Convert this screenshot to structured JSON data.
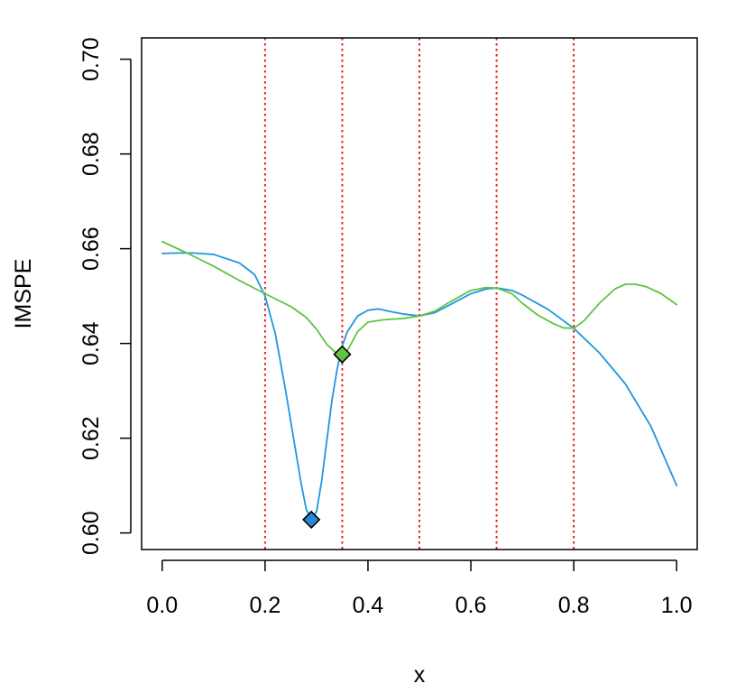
{
  "chart_data": {
    "type": "line",
    "xlabel": "x",
    "ylabel": "IMSPE",
    "xlim": [
      -0.04,
      1.04
    ],
    "ylim": [
      0.5965,
      0.7045
    ],
    "x_ticks": [
      0.0,
      0.2,
      0.4,
      0.6,
      0.8,
      1.0
    ],
    "x_tick_labels": [
      "0.0",
      "0.2",
      "0.4",
      "0.6",
      "0.8",
      "1.0"
    ],
    "y_ticks": [
      0.6,
      0.62,
      0.64,
      0.66,
      0.68,
      0.7
    ],
    "y_tick_labels": [
      "0.60",
      "0.62",
      "0.64",
      "0.66",
      "0.68",
      "0.70"
    ],
    "grid": false,
    "vlines": {
      "x": [
        0.2,
        0.35,
        0.5,
        0.65,
        0.8
      ],
      "color": "#e8211b",
      "style": "dotted"
    },
    "series": [
      {
        "color": "#2196e0",
        "x": [
          0.0,
          0.03,
          0.06,
          0.1,
          0.15,
          0.18,
          0.2,
          0.22,
          0.24,
          0.26,
          0.27,
          0.28,
          0.29,
          0.3,
          0.31,
          0.32,
          0.33,
          0.34,
          0.35,
          0.36,
          0.38,
          0.4,
          0.42,
          0.44,
          0.47,
          0.5,
          0.53,
          0.56,
          0.6,
          0.63,
          0.65,
          0.68,
          0.7,
          0.75,
          0.8,
          0.85,
          0.9,
          0.95,
          1.0
        ],
        "y": [
          0.659,
          0.6591,
          0.6591,
          0.6588,
          0.657,
          0.6545,
          0.65,
          0.642,
          0.63,
          0.617,
          0.6105,
          0.605,
          0.6028,
          0.6045,
          0.611,
          0.6195,
          0.628,
          0.6345,
          0.6395,
          0.6425,
          0.6458,
          0.647,
          0.6473,
          0.6468,
          0.6462,
          0.6458,
          0.6465,
          0.6482,
          0.6505,
          0.6515,
          0.6517,
          0.6512,
          0.6502,
          0.6472,
          0.6432,
          0.638,
          0.6315,
          0.6225,
          0.61
        ]
      },
      {
        "color": "#5ec444",
        "x": [
          0.0,
          0.05,
          0.1,
          0.15,
          0.2,
          0.25,
          0.28,
          0.3,
          0.32,
          0.34,
          0.35,
          0.36,
          0.38,
          0.4,
          0.43,
          0.47,
          0.5,
          0.53,
          0.56,
          0.6,
          0.63,
          0.65,
          0.68,
          0.7,
          0.73,
          0.76,
          0.78,
          0.8,
          0.82,
          0.85,
          0.88,
          0.9,
          0.92,
          0.94,
          0.97,
          1.0
        ],
        "y": [
          0.6615,
          0.659,
          0.6563,
          0.6533,
          0.6505,
          0.6478,
          0.6455,
          0.643,
          0.6398,
          0.6378,
          0.6377,
          0.6385,
          0.6425,
          0.6445,
          0.645,
          0.6453,
          0.6458,
          0.6468,
          0.6488,
          0.6512,
          0.6518,
          0.6517,
          0.6505,
          0.6485,
          0.646,
          0.6442,
          0.6433,
          0.6432,
          0.6448,
          0.6485,
          0.6515,
          0.6525,
          0.6525,
          0.652,
          0.6505,
          0.6482
        ]
      }
    ],
    "markers": [
      {
        "x": 0.29,
        "y": 0.6028,
        "shape": "diamond",
        "fill": "#2a86d6",
        "stroke": "#000000"
      },
      {
        "x": 0.35,
        "y": 0.6377,
        "shape": "diamond",
        "fill": "#5ec444",
        "stroke": "#000000"
      }
    ]
  }
}
